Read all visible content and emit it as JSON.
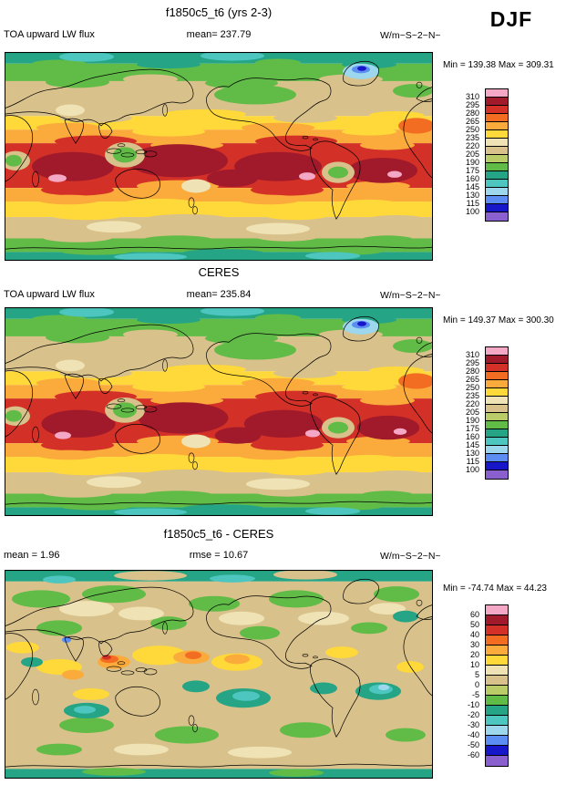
{
  "season": "DJF",
  "palette": [
    "#F5A8C5",
    "#A11A2B",
    "#D33027",
    "#F26C21",
    "#FBAA3C",
    "#FFD83A",
    "#EFE2B4",
    "#D8C18A",
    "#B9CC67",
    "#61BB47",
    "#25A585",
    "#4EC6C0",
    "#9CD7EE",
    "#5B8DF2",
    "#1717C9",
    "#8A60CF"
  ],
  "chart_data": [
    {
      "type": "heatmap",
      "panel": "model",
      "title": "f1850c5_t6 (yrs 2-3)",
      "variable": "TOA upward LW flux",
      "mean_label": "mean= 237.79",
      "units": "W/m~S~2~N~",
      "min_max": "Min = 139.38 Max = 309.31",
      "colorbar_levels": [
        310,
        295,
        280,
        265,
        250,
        235,
        220,
        205,
        190,
        175,
        160,
        145,
        130,
        115,
        100
      ],
      "legend_position": "right",
      "projection": "global lat-lon map, Pacific centered"
    },
    {
      "type": "heatmap",
      "panel": "observation",
      "title": "CERES",
      "variable": "TOA upward LW flux",
      "mean_label": "mean= 235.84",
      "units": "W/m~S~2~N~",
      "min_max": "Min = 149.37 Max = 300.30",
      "colorbar_levels": [
        310,
        295,
        280,
        265,
        250,
        235,
        220,
        205,
        190,
        175,
        160,
        145,
        130,
        115,
        100
      ],
      "legend_position": "right",
      "projection": "global lat-lon map, Pacific centered"
    },
    {
      "type": "heatmap",
      "panel": "difference",
      "title": "f1850c5_t6 - CERES",
      "mean_label": "mean =  1.96",
      "rmse_label": "rmse = 10.67",
      "units": "W/m~S~2~N~",
      "min_max": "Min = -74.74 Max = 44.23",
      "colorbar_levels": [
        60,
        50,
        40,
        30,
        20,
        10,
        5,
        0,
        -5,
        -10,
        -20,
        -30,
        -40,
        -50,
        -60
      ],
      "legend_position": "right",
      "projection": "global lat-lon map, Pacific centered"
    }
  ]
}
